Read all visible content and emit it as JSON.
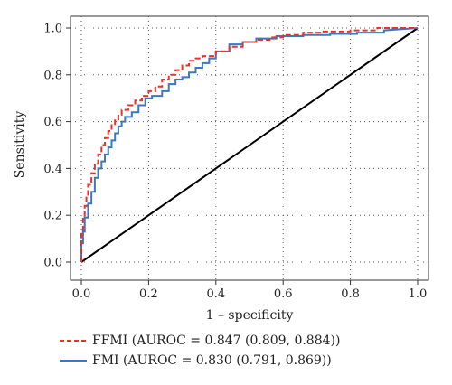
{
  "chart_data": {
    "type": "line",
    "title": "",
    "xlabel": "1 – specificity",
    "ylabel": "Sensitivity",
    "xlim": [
      0,
      1
    ],
    "ylim": [
      0,
      1
    ],
    "xticks": [
      "0.0",
      "0.2",
      "0.4",
      "0.6",
      "0.8",
      "1.0"
    ],
    "yticks": [
      "0.0",
      "0.2",
      "0.4",
      "0.6",
      "0.8",
      "1.0"
    ],
    "grid": true,
    "legend_position": "bottom",
    "series": [
      {
        "name": "FFMI (AUROC = 0.847 (0.809, 0.884))",
        "color": "#e8322b",
        "style": "dashed",
        "x": [
          0,
          0,
          0.005,
          0.005,
          0.01,
          0.01,
          0.015,
          0.015,
          0.02,
          0.02,
          0.03,
          0.03,
          0.04,
          0.04,
          0.05,
          0.05,
          0.06,
          0.06,
          0.07,
          0.07,
          0.08,
          0.08,
          0.09,
          0.09,
          0.1,
          0.1,
          0.11,
          0.11,
          0.12,
          0.12,
          0.14,
          0.14,
          0.16,
          0.16,
          0.18,
          0.18,
          0.2,
          0.2,
          0.22,
          0.22,
          0.24,
          0.24,
          0.26,
          0.26,
          0.28,
          0.28,
          0.3,
          0.3,
          0.32,
          0.32,
          0.34,
          0.34,
          0.36,
          0.36,
          0.4,
          0.4,
          0.44,
          0.44,
          0.48,
          0.48,
          0.52,
          0.52,
          0.56,
          0.56,
          0.6,
          0.6,
          0.66,
          0.66,
          0.72,
          0.72,
          0.8,
          0.8,
          0.88,
          0.88,
          0.96,
          0.96,
          1.0
        ],
        "y": [
          0,
          0.12,
          0.12,
          0.19,
          0.19,
          0.24,
          0.24,
          0.28,
          0.28,
          0.33,
          0.33,
          0.38,
          0.38,
          0.42,
          0.42,
          0.46,
          0.46,
          0.5,
          0.5,
          0.53,
          0.53,
          0.56,
          0.56,
          0.59,
          0.59,
          0.61,
          0.61,
          0.63,
          0.63,
          0.65,
          0.65,
          0.67,
          0.67,
          0.69,
          0.69,
          0.71,
          0.71,
          0.73,
          0.73,
          0.75,
          0.75,
          0.78,
          0.78,
          0.8,
          0.8,
          0.82,
          0.82,
          0.84,
          0.84,
          0.86,
          0.86,
          0.87,
          0.87,
          0.88,
          0.88,
          0.9,
          0.9,
          0.92,
          0.92,
          0.94,
          0.94,
          0.95,
          0.95,
          0.96,
          0.96,
          0.97,
          0.97,
          0.98,
          0.98,
          0.985,
          0.985,
          0.99,
          0.99,
          1.0,
          1.0,
          1.0,
          1.0
        ]
      },
      {
        "name": "FMI (AUROC = 0.830 (0.791, 0.869))",
        "color": "#3b78c0",
        "style": "solid",
        "x": [
          0,
          0,
          0.005,
          0.005,
          0.01,
          0.01,
          0.02,
          0.02,
          0.03,
          0.03,
          0.04,
          0.04,
          0.05,
          0.05,
          0.06,
          0.06,
          0.07,
          0.07,
          0.08,
          0.08,
          0.09,
          0.09,
          0.1,
          0.1,
          0.11,
          0.11,
          0.12,
          0.12,
          0.13,
          0.13,
          0.15,
          0.15,
          0.17,
          0.17,
          0.19,
          0.19,
          0.21,
          0.21,
          0.24,
          0.24,
          0.26,
          0.26,
          0.28,
          0.28,
          0.3,
          0.3,
          0.32,
          0.32,
          0.34,
          0.34,
          0.36,
          0.36,
          0.38,
          0.38,
          0.4,
          0.4,
          0.44,
          0.44,
          0.48,
          0.48,
          0.52,
          0.52,
          0.58,
          0.58,
          0.66,
          0.66,
          0.74,
          0.74,
          0.82,
          0.82,
          0.9,
          0.9,
          1.0
        ],
        "y": [
          0,
          0.08,
          0.08,
          0.13,
          0.13,
          0.19,
          0.19,
          0.25,
          0.25,
          0.3,
          0.3,
          0.36,
          0.36,
          0.4,
          0.4,
          0.43,
          0.43,
          0.46,
          0.46,
          0.49,
          0.49,
          0.52,
          0.52,
          0.55,
          0.55,
          0.58,
          0.58,
          0.6,
          0.6,
          0.62,
          0.62,
          0.64,
          0.64,
          0.67,
          0.67,
          0.7,
          0.7,
          0.71,
          0.71,
          0.73,
          0.73,
          0.76,
          0.76,
          0.78,
          0.78,
          0.79,
          0.79,
          0.81,
          0.81,
          0.83,
          0.83,
          0.85,
          0.85,
          0.87,
          0.87,
          0.9,
          0.9,
          0.93,
          0.93,
          0.94,
          0.94,
          0.955,
          0.955,
          0.965,
          0.965,
          0.97,
          0.97,
          0.975,
          0.975,
          0.98,
          0.98,
          0.99,
          1.0
        ]
      },
      {
        "name": "",
        "color": "#000000",
        "style": "solid",
        "x": [
          0,
          1
        ],
        "y": [
          0,
          1
        ]
      }
    ]
  }
}
